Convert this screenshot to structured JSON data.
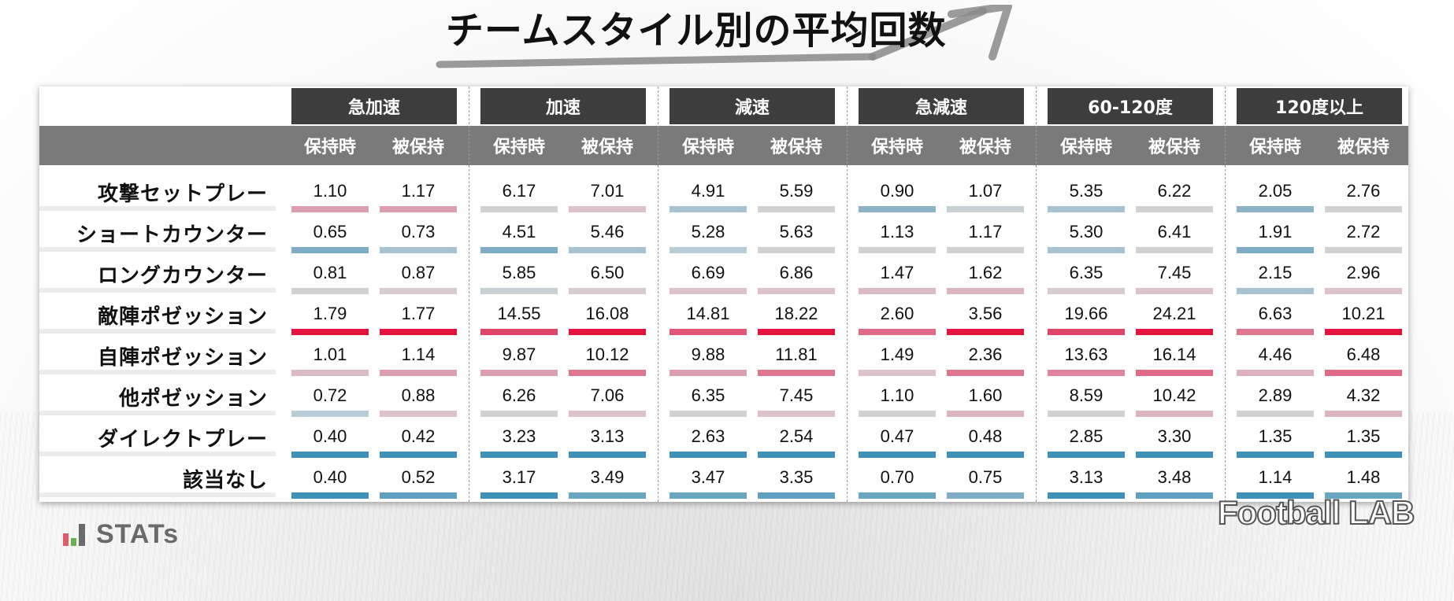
{
  "header": {
    "title": "チームスタイル別の平均回数"
  },
  "branding": {
    "stats": "STATs",
    "football_lab": "Football LAB"
  },
  "colors": {
    "pink_strong": "#e3143e",
    "pink_light": "#d8b7c0",
    "gray_neutral": "#d2d2d2",
    "blue_light": "#a7c2d1",
    "blue_strong": "#3d92b8"
  },
  "chart_data": {
    "type": "table",
    "title": "チームスタイル別の平均回数",
    "categories": [
      "急加速",
      "加速",
      "減速",
      "急減速",
      "60-120度",
      "120度以上"
    ],
    "subcolumns": [
      "保持時",
      "被保持"
    ],
    "rows": [
      {
        "label": "攻撃セットプレー",
        "values": [
          "1.10",
          "1.17",
          "6.17",
          "7.01",
          "4.91",
          "5.59",
          "0.90",
          "1.07",
          "5.35",
          "6.22",
          "2.05",
          "2.76"
        ],
        "colors": [
          "#dc9fb0",
          "#dc9fb0",
          "#d2d2d2",
          "#dcc3ca",
          "#a7c2d1",
          "#d2d2d2",
          "#8db3c7",
          "#c8d0d4",
          "#a7c2d1",
          "#d2d2d2",
          "#8db3c7",
          "#d2d2d2"
        ]
      },
      {
        "label": "ショートカウンター",
        "values": [
          "0.65",
          "0.73",
          "4.51",
          "5.46",
          "5.28",
          "5.63",
          "1.13",
          "1.17",
          "5.30",
          "6.41",
          "1.91",
          "2.72"
        ],
        "colors": [
          "#7fadc6",
          "#a7c2d1",
          "#7fadc6",
          "#a7c2d1",
          "#b9cdd8",
          "#d2d2d2",
          "#d2d2d2",
          "#d2d2d2",
          "#a7c2d1",
          "#d2d2d2",
          "#7fadc6",
          "#d2d2d2"
        ]
      },
      {
        "label": "ロングカウンター",
        "values": [
          "0.81",
          "0.87",
          "5.85",
          "6.50",
          "6.69",
          "6.86",
          "1.47",
          "1.62",
          "6.35",
          "7.45",
          "2.15",
          "2.96"
        ],
        "colors": [
          "#d2d2d2",
          "#d8cbcf",
          "#c8d0d4",
          "#d8cbcf",
          "#dcc3ca",
          "#dcc3ca",
          "#dbbcc4",
          "#dbb4be",
          "#d8cbcf",
          "#dcc3ca",
          "#a7c2d1",
          "#dcc3ca"
        ]
      },
      {
        "label": "敵陣ポゼッション",
        "values": [
          "1.79",
          "1.77",
          "14.55",
          "16.08",
          "14.81",
          "18.22",
          "2.60",
          "3.56",
          "19.66",
          "24.21",
          "6.63",
          "10.21"
        ],
        "colors": [
          "#e3143e",
          "#e3143e",
          "#e0456a",
          "#e3143e",
          "#e05578",
          "#e3143e",
          "#e06a88",
          "#e3143e",
          "#e0456a",
          "#e3143e",
          "#e07592",
          "#e3143e"
        ]
      },
      {
        "label": "自陣ポゼッション",
        "values": [
          "1.01",
          "1.14",
          "9.87",
          "10.12",
          "9.88",
          "11.81",
          "1.49",
          "2.36",
          "13.63",
          "16.14",
          "4.46",
          "6.48"
        ],
        "colors": [
          "#dbbcc4",
          "#dc9fb0",
          "#dc9fb0",
          "#e07592",
          "#dc9fb0",
          "#e07592",
          "#dcc3ca",
          "#e07592",
          "#e0859d",
          "#e06a88",
          "#dcb0bc",
          "#e06a88"
        ]
      },
      {
        "label": "他ポゼッション",
        "values": [
          "0.72",
          "0.88",
          "6.26",
          "7.06",
          "6.35",
          "7.45",
          "1.10",
          "1.60",
          "8.59",
          "10.42",
          "2.89",
          "4.32"
        ],
        "colors": [
          "#b9cdd8",
          "#dcc3ca",
          "#d2d2d2",
          "#dcc3ca",
          "#d2d2d2",
          "#dcc3ca",
          "#d2d2d2",
          "#dbb4be",
          "#d2d2d2",
          "#dbb4be",
          "#d2d2d2",
          "#dbb4be"
        ]
      },
      {
        "label": "ダイレクトプレー",
        "values": [
          "0.40",
          "0.42",
          "3.23",
          "3.13",
          "2.63",
          "2.54",
          "0.47",
          "0.48",
          "2.85",
          "3.30",
          "1.35",
          "1.35"
        ],
        "colors": [
          "#3d92b8",
          "#3d92b8",
          "#3d92b8",
          "#3d92b8",
          "#3d92b8",
          "#3d92b8",
          "#3d92b8",
          "#3d92b8",
          "#3d92b8",
          "#3d92b8",
          "#3d92b8",
          "#3d92b8"
        ]
      },
      {
        "label": "該当なし",
        "values": [
          "0.40",
          "0.52",
          "3.17",
          "3.49",
          "3.47",
          "3.35",
          "0.70",
          "0.75",
          "3.13",
          "3.48",
          "1.14",
          "1.48"
        ],
        "colors": [
          "#3d92b8",
          "#5f9fbf",
          "#3d92b8",
          "#6aa6c2",
          "#6aa6c2",
          "#5f9fbf",
          "#6aa6c2",
          "#7fadc6",
          "#3d92b8",
          "#5f9fbf",
          "#3d92b8",
          "#6aa6c2"
        ]
      }
    ]
  }
}
